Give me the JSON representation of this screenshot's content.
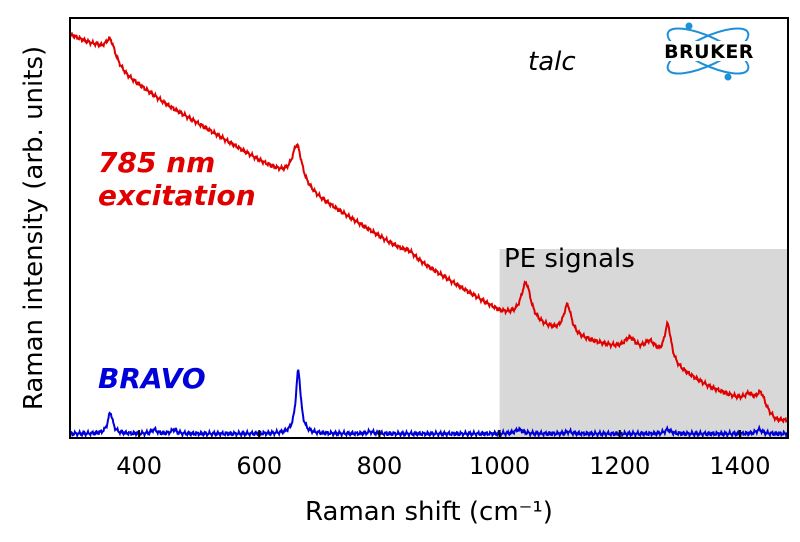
{
  "chart_data": {
    "type": "line",
    "xlabel": "Raman shift (cm⁻¹)",
    "ylabel": "Raman intensity (arb. units)",
    "xlim": [
      285,
      1480
    ],
    "ylim": [
      0,
      1
    ],
    "xticks": [
      400,
      600,
      800,
      1000,
      1200,
      1400
    ],
    "yticks_shown": false,
    "grid": false,
    "series": [
      {
        "name": "785 nm excitation",
        "color": "#e00000",
        "baseline": [
          [
            285,
            0.96
          ],
          [
            330,
            0.93
          ],
          [
            380,
            0.86
          ],
          [
            450,
            0.79
          ],
          [
            520,
            0.73
          ],
          [
            600,
            0.66
          ],
          [
            650,
            0.62
          ],
          [
            700,
            0.57
          ],
          [
            800,
            0.48
          ],
          [
            900,
            0.39
          ],
          [
            1000,
            0.3
          ],
          [
            1100,
            0.25
          ],
          [
            1200,
            0.21
          ],
          [
            1260,
            0.19
          ],
          [
            1300,
            0.16
          ],
          [
            1350,
            0.12
          ],
          [
            1400,
            0.09
          ],
          [
            1430,
            0.07
          ],
          [
            1460,
            0.04
          ],
          [
            1480,
            0.04
          ]
        ],
        "peaks": [
          {
            "x": 352,
            "height": 0.05,
            "width": 10
          },
          {
            "x": 663,
            "height": 0.09,
            "width": 10
          },
          {
            "x": 850,
            "height": 0.01,
            "width": 12
          },
          {
            "x": 1044,
            "height": 0.09,
            "width": 10
          },
          {
            "x": 1113,
            "height": 0.07,
            "width": 8
          },
          {
            "x": 1217,
            "height": 0.03,
            "width": 12
          },
          {
            "x": 1250,
            "height": 0.03,
            "width": 12
          },
          {
            "x": 1280,
            "height": 0.09,
            "width": 7
          },
          {
            "x": 1415,
            "height": 0.02,
            "width": 9
          },
          {
            "x": 1435,
            "height": 0.04,
            "width": 9
          }
        ]
      },
      {
        "name": "BRAVO",
        "color": "#0000d8",
        "baseline": [
          [
            285,
            0.01
          ],
          [
            1480,
            0.01
          ]
        ],
        "peaks": [
          {
            "x": 352,
            "height": 0.05,
            "width": 5
          },
          {
            "x": 425,
            "height": 0.01,
            "width": 5
          },
          {
            "x": 458,
            "height": 0.01,
            "width": 5
          },
          {
            "x": 665,
            "height": 0.15,
            "width": 5
          },
          {
            "x": 785,
            "height": 0.005,
            "width": 6
          },
          {
            "x": 1032,
            "height": 0.01,
            "width": 8
          },
          {
            "x": 1115,
            "height": 0.005,
            "width": 6
          },
          {
            "x": 1280,
            "height": 0.01,
            "width": 6
          },
          {
            "x": 1432,
            "height": 0.01,
            "width": 6
          }
        ]
      }
    ],
    "shaded_region": {
      "label": "PE signals",
      "x": [
        1000,
        1480
      ],
      "y_top": 0.45,
      "color": "#d8d8d8"
    },
    "annotations": {
      "sample": "talc",
      "red_label_line1": "785 nm",
      "red_label_line2": "excitation",
      "blue_label": "BRAVO"
    }
  },
  "logo": {
    "text": "BRUKER",
    "color": "#1e90d8"
  }
}
